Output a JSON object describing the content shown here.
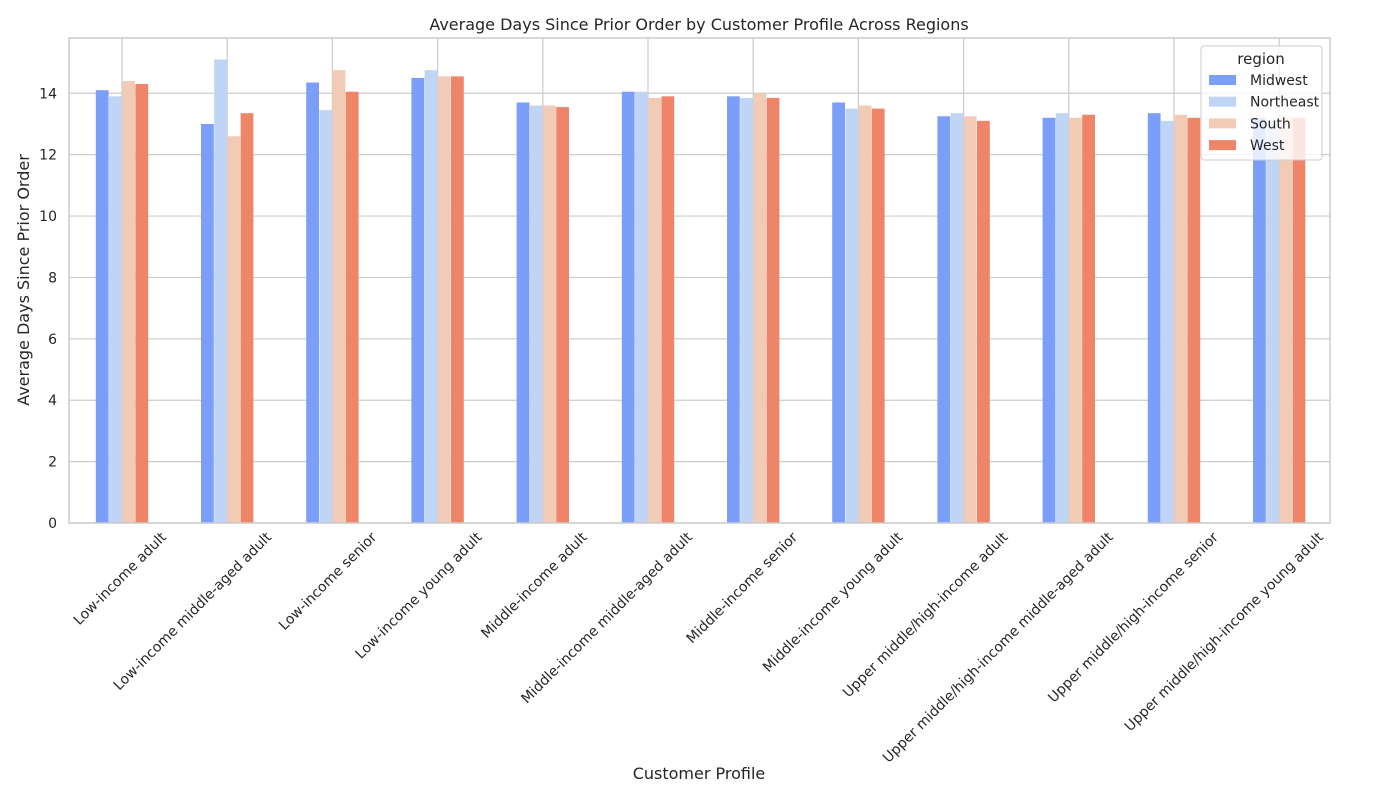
{
  "chart_data": {
    "type": "bar",
    "title": "Average Days Since Prior Order by Customer Profile Across Regions",
    "xlabel": "Customer Profile",
    "ylabel": "Average Days Since Prior Order",
    "ylim": [
      0,
      15.8
    ],
    "yticks": [
      "0",
      "2",
      "4",
      "6",
      "8",
      "10",
      "12",
      "14"
    ],
    "grid": true,
    "legend": {
      "title": "region",
      "placement": "top-right"
    },
    "categories": [
      "Low-income adult",
      "Low-income middle-aged adult",
      "Low-income senior",
      "Low-income young adult",
      "Middle-income adult",
      "Middle-income middle-aged adult",
      "Middle-income senior",
      "Middle-income young adult",
      "Upper middle/high-income adult",
      "Upper middle/high-income middle-aged adult",
      "Upper middle/high-income senior",
      "Upper middle/high-income young adult"
    ],
    "series": [
      {
        "name": "Midwest",
        "color": "#7b9ff9",
        "values": [
          14.1,
          13.0,
          14.35,
          14.5,
          13.7,
          14.05,
          13.9,
          13.7,
          13.25,
          13.2,
          13.35,
          13.2
        ]
      },
      {
        "name": "Northeast",
        "color": "#c0d4f5",
        "values": [
          13.9,
          15.1,
          13.45,
          14.75,
          13.6,
          14.05,
          13.85,
          13.5,
          13.35,
          13.35,
          13.1,
          13.1
        ]
      },
      {
        "name": "South",
        "color": "#f2cbb7",
        "values": [
          14.4,
          12.6,
          14.75,
          14.55,
          13.6,
          13.85,
          14.0,
          13.6,
          13.25,
          13.2,
          13.3,
          13.25
        ]
      },
      {
        "name": "West",
        "color": "#ee8468",
        "values": [
          14.3,
          13.35,
          14.05,
          14.55,
          13.55,
          13.9,
          13.85,
          13.5,
          13.1,
          13.3,
          13.2,
          13.2
        ]
      }
    ]
  }
}
